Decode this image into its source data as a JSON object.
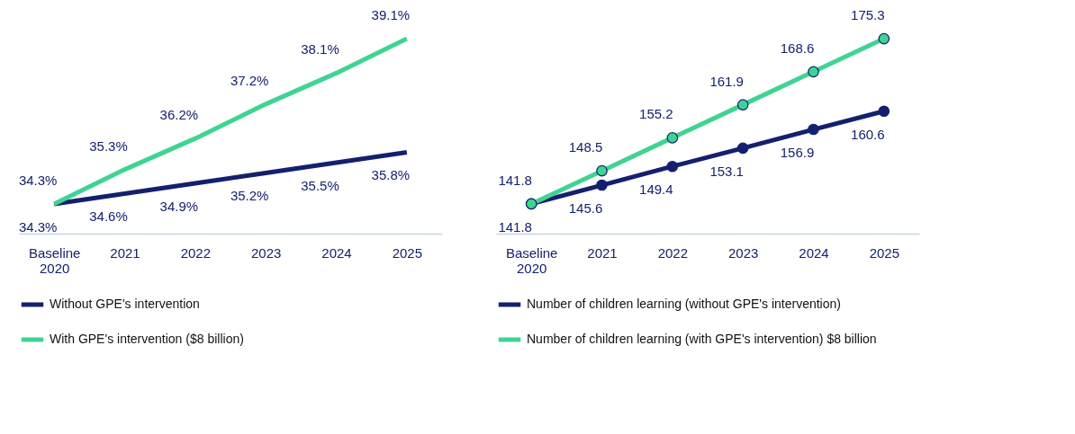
{
  "chart_data": [
    {
      "type": "line",
      "categories": [
        "Baseline 2020",
        "2021",
        "2022",
        "2023",
        "2024",
        "2025"
      ],
      "legend": "bottom",
      "grid": false,
      "marker": "none",
      "line_style": "solid",
      "data_labels": true,
      "series": [
        {
          "name": "Without GPE's intervention",
          "color": "#14206e",
          "values": [
            34.3,
            34.6,
            34.9,
            35.2,
            35.5,
            35.8
          ],
          "value_labels": [
            "34.3%",
            "34.6%",
            "34.9%",
            "35.2%",
            "35.5%",
            "35.8%"
          ]
        },
        {
          "name": "With GPE's intervention  ($8 billion)",
          "color": "#3fd493",
          "values": [
            34.3,
            35.3,
            36.2,
            37.2,
            38.1,
            39.1
          ],
          "value_labels": [
            "34.3%",
            "35.3%",
            "36.2%",
            "37.2%",
            "38.1%",
            "39.1%"
          ]
        }
      ]
    },
    {
      "type": "line",
      "categories": [
        "Baseline 2020",
        "2021",
        "2022",
        "2023",
        "2024",
        "2025"
      ],
      "legend": "bottom",
      "grid": false,
      "marker": "circle",
      "line_style": "solid",
      "data_labels": true,
      "series": [
        {
          "name": "Number of children learning (without GPE's intervention)",
          "color": "#14206e",
          "values": [
            141.8,
            145.6,
            149.4,
            153.1,
            156.9,
            160.6
          ]
        },
        {
          "name": "Number of children learning (with GPE's intervention) $8 billion",
          "color": "#3fd493",
          "values": [
            141.8,
            148.5,
            155.2,
            161.9,
            168.6,
            175.3
          ]
        }
      ]
    }
  ]
}
